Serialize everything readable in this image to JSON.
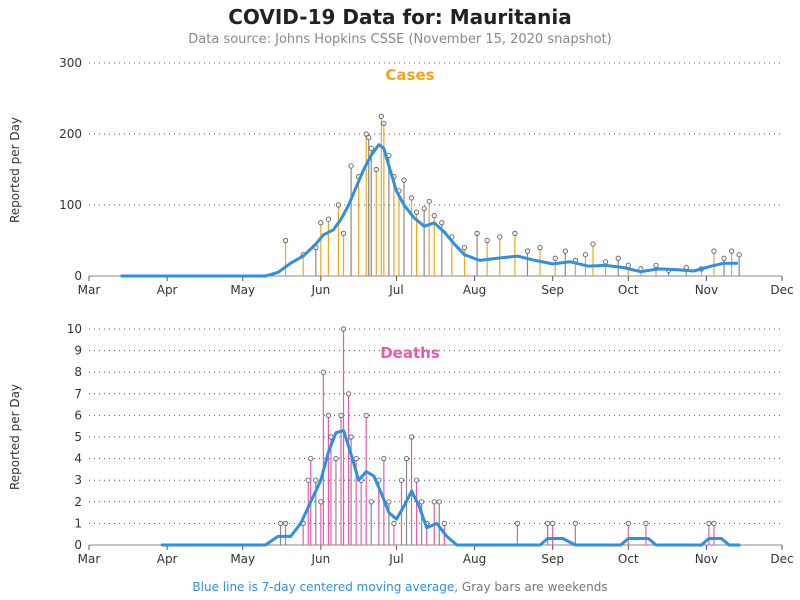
{
  "header": {
    "title": "COVID-19 Data for: Mauritania",
    "subtitle": "Data source: Johns Hopkins CSSE (November 15, 2020 snapshot)"
  },
  "footer": {
    "average_note": "Blue line is 7-day centered moving average,",
    "weekend_note": " Gray bars are weekends"
  },
  "colors": {
    "cases_accent": "#f2a51a",
    "deaths_accent": "#e85aae",
    "moving_average": "#2f8fe0",
    "weekend": "#888888"
  },
  "chart_data": [
    {
      "type": "bar",
      "name": "cases",
      "title": "Cases",
      "ylabel": "Reported per Day",
      "ylim": [
        0,
        300
      ],
      "yticks": [
        0,
        100,
        200,
        300
      ],
      "xlim": [
        "Mar",
        "Dec"
      ],
      "xticks": [
        "Mar",
        "Apr",
        "May",
        "Jun",
        "Jul",
        "Aug",
        "Sep",
        "Oct",
        "Nov",
        "Dec"
      ],
      "grid": "horizontal dotted",
      "moving_average": [
        [
          "2020-03-14",
          0
        ],
        [
          "2020-04-15",
          0
        ],
        [
          "2020-05-10",
          0
        ],
        [
          "2020-05-15",
          5
        ],
        [
          "2020-05-20",
          18
        ],
        [
          "2020-05-25",
          28
        ],
        [
          "2020-05-30",
          45
        ],
        [
          "2020-06-02",
          58
        ],
        [
          "2020-06-06",
          65
        ],
        [
          "2020-06-09",
          80
        ],
        [
          "2020-06-12",
          100
        ],
        [
          "2020-06-15",
          125
        ],
        [
          "2020-06-18",
          150
        ],
        [
          "2020-06-21",
          170
        ],
        [
          "2020-06-24",
          185
        ],
        [
          "2020-06-26",
          180
        ],
        [
          "2020-06-28",
          155
        ],
        [
          "2020-07-01",
          120
        ],
        [
          "2020-07-04",
          100
        ],
        [
          "2020-07-08",
          82
        ],
        [
          "2020-07-12",
          70
        ],
        [
          "2020-07-16",
          75
        ],
        [
          "2020-07-20",
          62
        ],
        [
          "2020-07-24",
          45
        ],
        [
          "2020-07-28",
          30
        ],
        [
          "2020-08-03",
          22
        ],
        [
          "2020-08-10",
          25
        ],
        [
          "2020-08-18",
          28
        ],
        [
          "2020-08-25",
          22
        ],
        [
          "2020-09-01",
          17
        ],
        [
          "2020-09-08",
          20
        ],
        [
          "2020-09-15",
          14
        ],
        [
          "2020-09-22",
          15
        ],
        [
          "2020-09-29",
          12
        ],
        [
          "2020-10-06",
          6
        ],
        [
          "2020-10-13",
          10
        ],
        [
          "2020-10-20",
          9
        ],
        [
          "2020-10-27",
          7
        ],
        [
          "2020-11-03",
          14
        ],
        [
          "2020-11-08",
          18
        ],
        [
          "2020-11-13",
          18
        ]
      ],
      "daily": [
        [
          "2020-05-18",
          50
        ],
        [
          "2020-05-25",
          30
        ],
        [
          "2020-05-30",
          40
        ],
        [
          "2020-06-01",
          75
        ],
        [
          "2020-06-04",
          80
        ],
        [
          "2020-06-08",
          100
        ],
        [
          "2020-06-10",
          60
        ],
        [
          "2020-06-13",
          155
        ],
        [
          "2020-06-16",
          140
        ],
        [
          "2020-06-19",
          200
        ],
        [
          "2020-06-20",
          195
        ],
        [
          "2020-06-21",
          180
        ],
        [
          "2020-06-23",
          150
        ],
        [
          "2020-06-25",
          225
        ],
        [
          "2020-06-26",
          215
        ],
        [
          "2020-06-28",
          170
        ],
        [
          "2020-06-30",
          140
        ],
        [
          "2020-07-02",
          120
        ],
        [
          "2020-07-04",
          135
        ],
        [
          "2020-07-07",
          110
        ],
        [
          "2020-07-09",
          90
        ],
        [
          "2020-07-12",
          95
        ],
        [
          "2020-07-14",
          105
        ],
        [
          "2020-07-16",
          85
        ],
        [
          "2020-07-19",
          75
        ],
        [
          "2020-07-23",
          55
        ],
        [
          "2020-07-28",
          40
        ],
        [
          "2020-08-02",
          60
        ],
        [
          "2020-08-06",
          50
        ],
        [
          "2020-08-11",
          55
        ],
        [
          "2020-08-17",
          60
        ],
        [
          "2020-08-22",
          35
        ],
        [
          "2020-08-27",
          40
        ],
        [
          "2020-09-02",
          25
        ],
        [
          "2020-09-06",
          35
        ],
        [
          "2020-09-10",
          22
        ],
        [
          "2020-09-14",
          30
        ],
        [
          "2020-09-17",
          45
        ],
        [
          "2020-09-22",
          20
        ],
        [
          "2020-09-27",
          25
        ],
        [
          "2020-10-01",
          15
        ],
        [
          "2020-10-06",
          10
        ],
        [
          "2020-10-12",
          15
        ],
        [
          "2020-10-17",
          8
        ],
        [
          "2020-10-24",
          12
        ],
        [
          "2020-10-30",
          10
        ],
        [
          "2020-11-04",
          35
        ],
        [
          "2020-11-08",
          25
        ],
        [
          "2020-11-11",
          35
        ],
        [
          "2020-11-14",
          30
        ]
      ]
    },
    {
      "type": "bar",
      "name": "deaths",
      "title": "Deaths",
      "ylabel": "Reported per Day",
      "ylim": [
        0,
        10
      ],
      "yticks": [
        0,
        1,
        2,
        3,
        4,
        5,
        6,
        7,
        8,
        9,
        10
      ],
      "xlim": [
        "Mar",
        "Dec"
      ],
      "xticks": [
        "Mar",
        "Apr",
        "May",
        "Jun",
        "Jul",
        "Aug",
        "Sep",
        "Oct",
        "Nov",
        "Dec"
      ],
      "grid": "horizontal dotted",
      "moving_average": [
        [
          "2020-03-30",
          0
        ],
        [
          "2020-05-10",
          0
        ],
        [
          "2020-05-15",
          0.4
        ],
        [
          "2020-05-20",
          0.4
        ],
        [
          "2020-05-24",
          1
        ],
        [
          "2020-05-28",
          2
        ],
        [
          "2020-06-01",
          3
        ],
        [
          "2020-06-04",
          4.3
        ],
        [
          "2020-06-07",
          5.2
        ],
        [
          "2020-06-10",
          5.3
        ],
        [
          "2020-06-13",
          4.2
        ],
        [
          "2020-06-16",
          3
        ],
        [
          "2020-06-19",
          3.4
        ],
        [
          "2020-06-22",
          3.2
        ],
        [
          "2020-06-25",
          2.4
        ],
        [
          "2020-06-28",
          1.5
        ],
        [
          "2020-07-01",
          1.2
        ],
        [
          "2020-07-04",
          1.8
        ],
        [
          "2020-07-07",
          2.5
        ],
        [
          "2020-07-10",
          1.8
        ],
        [
          "2020-07-13",
          0.8
        ],
        [
          "2020-07-17",
          1
        ],
        [
          "2020-07-21",
          0.4
        ],
        [
          "2020-07-25",
          0
        ],
        [
          "2020-08-27",
          0
        ],
        [
          "2020-08-30",
          0.3
        ],
        [
          "2020-09-05",
          0.3
        ],
        [
          "2020-09-10",
          0
        ],
        [
          "2020-09-28",
          0
        ],
        [
          "2020-10-01",
          0.3
        ],
        [
          "2020-10-09",
          0.3
        ],
        [
          "2020-10-12",
          0
        ],
        [
          "2020-10-30",
          0
        ],
        [
          "2020-11-02",
          0.3
        ],
        [
          "2020-11-07",
          0.3
        ],
        [
          "2020-11-10",
          0
        ],
        [
          "2020-11-14",
          0
        ]
      ],
      "daily": [
        [
          "2020-05-16",
          1
        ],
        [
          "2020-05-18",
          1
        ],
        [
          "2020-05-25",
          1
        ],
        [
          "2020-05-27",
          3
        ],
        [
          "2020-05-28",
          4
        ],
        [
          "2020-05-30",
          3
        ],
        [
          "2020-06-01",
          2
        ],
        [
          "2020-06-02",
          8
        ],
        [
          "2020-06-04",
          6
        ],
        [
          "2020-06-05",
          5
        ],
        [
          "2020-06-07",
          4
        ],
        [
          "2020-06-09",
          6
        ],
        [
          "2020-06-10",
          10
        ],
        [
          "2020-06-12",
          7
        ],
        [
          "2020-06-13",
          5
        ],
        [
          "2020-06-15",
          4
        ],
        [
          "2020-06-17",
          3
        ],
        [
          "2020-06-19",
          6
        ],
        [
          "2020-06-21",
          2
        ],
        [
          "2020-06-24",
          3
        ],
        [
          "2020-06-26",
          4
        ],
        [
          "2020-06-28",
          2
        ],
        [
          "2020-06-30",
          1
        ],
        [
          "2020-07-03",
          3
        ],
        [
          "2020-07-05",
          4
        ],
        [
          "2020-07-07",
          5
        ],
        [
          "2020-07-09",
          3
        ],
        [
          "2020-07-11",
          2
        ],
        [
          "2020-07-13",
          1
        ],
        [
          "2020-07-16",
          2
        ],
        [
          "2020-07-18",
          2
        ],
        [
          "2020-07-20",
          1
        ],
        [
          "2020-08-18",
          1
        ],
        [
          "2020-08-30",
          1
        ],
        [
          "2020-09-01",
          1
        ],
        [
          "2020-09-10",
          1
        ],
        [
          "2020-10-01",
          1
        ],
        [
          "2020-10-08",
          1
        ],
        [
          "2020-11-02",
          1
        ],
        [
          "2020-11-04",
          1
        ]
      ]
    }
  ]
}
